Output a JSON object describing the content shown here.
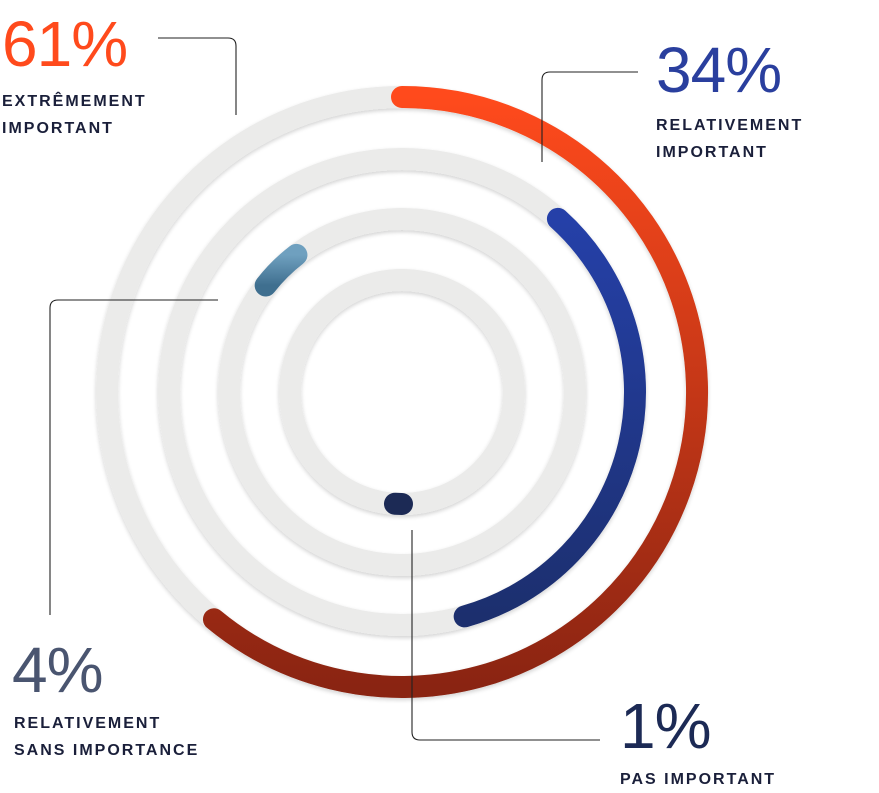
{
  "chart_data": {
    "type": "radial-bar",
    "series": [
      {
        "value": 61,
        "value_label": "61%",
        "label_lines": [
          "EXTRÊMEMENT",
          "IMPORTANT"
        ],
        "color": "#ff4a1c",
        "color_end": "#8a2412"
      },
      {
        "value": 34,
        "value_label": "34%",
        "label_lines": [
          "RELATIVEMENT",
          "IMPORTANT"
        ],
        "color": "#2540a8",
        "color_end": "#1c2f6e"
      },
      {
        "value": 4,
        "value_label": "4%",
        "label_lines": [
          "RELATIVEMENT",
          "SANS IMPORTANCE"
        ],
        "color": "#6fa0bf",
        "color_end": "#3f6f8f"
      },
      {
        "value": 1,
        "value_label": "1%",
        "label_lines": [
          "PAS IMPORTANT"
        ],
        "color": "#1c2a55",
        "color_end": "#1c2a55"
      }
    ],
    "track_color": "#ebebea",
    "max": 100
  },
  "colors": {
    "leader_line": "#222222",
    "value_61": "#ff4a1c",
    "value_34": "#2a3f9e",
    "value_4": "#4a5570",
    "value_1": "#1c2a55"
  }
}
